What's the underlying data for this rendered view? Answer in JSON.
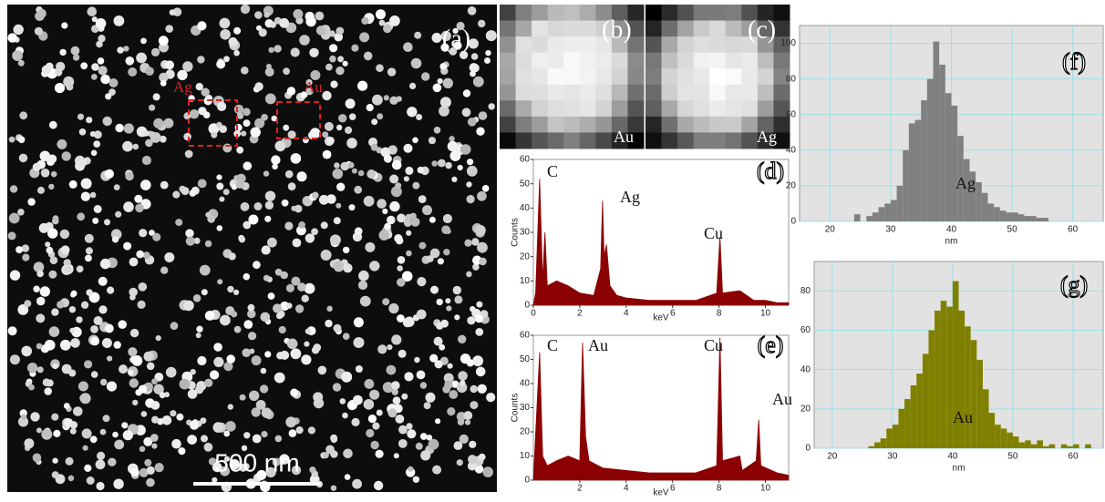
{
  "micrograph": {
    "label": "(a)",
    "regions": [
      "Ag",
      "Au"
    ],
    "scale_bar": "500 nm"
  },
  "insets": [
    {
      "label": "(b)",
      "element": "Au"
    },
    {
      "label": "(c)",
      "element": "Ag"
    }
  ],
  "chart_data": [
    {
      "type": "area",
      "panel": "(d)",
      "annotations": [
        "C",
        "Ag",
        "Cu"
      ],
      "ylabel": "Counts",
      "xlabel": "keV",
      "color": "#8b0000",
      "x": [
        0,
        0.1,
        0.27,
        0.4,
        0.5,
        0.6,
        1,
        1.5,
        2,
        2.6,
        2.9,
        2.98,
        3.05,
        3.15,
        3.3,
        3.6,
        4,
        5,
        6,
        7,
        7.9,
        8.04,
        8.15,
        8.9,
        9.5,
        10,
        10.5,
        11
      ],
      "values": [
        0,
        5,
        52,
        10,
        30,
        8,
        10,
        8,
        5,
        4,
        15,
        43,
        20,
        25,
        8,
        4,
        3,
        2,
        2,
        2,
        5,
        28,
        5,
        6,
        2,
        2,
        1,
        1
      ],
      "xlim": [
        0,
        11
      ],
      "xticks": [
        0,
        2,
        4,
        6,
        8,
        10
      ],
      "ylim": [
        0,
        60
      ],
      "yticks": [
        0,
        10,
        20,
        30,
        40,
        50,
        60
      ]
    },
    {
      "type": "area",
      "panel": "(e)",
      "annotations": [
        "C",
        "Au",
        "Cu",
        "Au"
      ],
      "ylabel": "Counts",
      "xlabel": "keV",
      "color": "#8b0000",
      "x": [
        0,
        0.27,
        0.4,
        0.6,
        1,
        1.5,
        2,
        2.12,
        2.25,
        2.4,
        3,
        4,
        5,
        6,
        7,
        7.9,
        8.04,
        8.15,
        8.9,
        9,
        9.6,
        9.71,
        9.8,
        10.5,
        11
      ],
      "values": [
        0,
        53,
        10,
        6,
        8,
        10,
        8,
        57,
        18,
        8,
        5,
        4,
        3,
        3,
        3,
        6,
        59,
        8,
        10,
        4,
        8,
        25,
        6,
        3,
        2
      ],
      "xlim": [
        0,
        11
      ],
      "xticks": [
        2,
        4,
        6,
        8,
        10
      ],
      "ylim": [
        0,
        60
      ],
      "yticks": [
        0,
        10,
        20,
        30,
        40,
        50,
        60
      ]
    },
    {
      "type": "histogram",
      "panel": "(f)",
      "annotations": [
        "Ag"
      ],
      "xlabel": "nm",
      "color": "#808080",
      "grid": true,
      "bins": [
        24,
        25,
        26,
        27,
        28,
        29,
        30,
        31,
        32,
        33,
        34,
        35,
        36,
        37,
        38,
        39,
        40,
        41,
        42,
        43,
        44,
        45,
        46,
        47,
        48,
        49,
        50,
        51,
        52,
        53,
        54,
        55,
        56
      ],
      "values": [
        4,
        0,
        3,
        5,
        8,
        10,
        12,
        20,
        40,
        55,
        57,
        68,
        80,
        101,
        88,
        72,
        65,
        48,
        35,
        28,
        22,
        16,
        10,
        8,
        6,
        5,
        5,
        4,
        3,
        3,
        2,
        2
      ],
      "xlim": [
        15,
        65
      ],
      "xticks": [
        20,
        30,
        40,
        50,
        60
      ],
      "ylim": [
        0,
        110
      ],
      "yticks": [
        0,
        20,
        40,
        60,
        80,
        100
      ]
    },
    {
      "type": "histogram",
      "panel": "(g)",
      "annotations": [
        "Au"
      ],
      "xlabel": "nm",
      "color": "#808000",
      "grid": true,
      "bins": [
        26,
        27,
        28,
        29,
        30,
        31,
        32,
        33,
        34,
        35,
        36,
        37,
        38,
        39,
        40,
        41,
        42,
        43,
        44,
        45,
        46,
        47,
        48,
        49,
        50,
        51,
        52,
        53,
        54,
        55,
        56,
        57,
        58,
        59,
        60,
        61,
        62,
        63
      ],
      "values": [
        1,
        3,
        5,
        10,
        12,
        20,
        25,
        32,
        38,
        48,
        60,
        70,
        75,
        72,
        85,
        70,
        62,
        55,
        45,
        30,
        18,
        12,
        10,
        8,
        6,
        3,
        4,
        2,
        4,
        1,
        2,
        0,
        2,
        1,
        2,
        0,
        2
      ],
      "xlim": [
        17,
        65
      ],
      "xticks": [
        20,
        30,
        40,
        50,
        60
      ],
      "ylim": [
        0,
        95
      ],
      "yticks": [
        0,
        20,
        40,
        60,
        80
      ]
    }
  ]
}
